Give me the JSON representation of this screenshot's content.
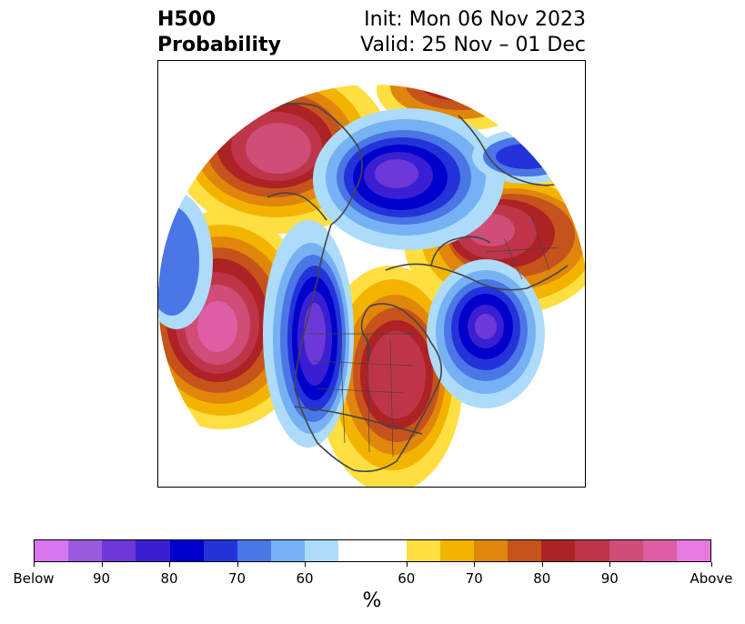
{
  "title": {
    "left_line1": "H500",
    "left_line2": "Probability",
    "right_line1": "Init: Mon 06 Nov 2023",
    "right_line2": "Valid: 25 Nov – 01 Dec"
  },
  "colors": {
    "below": [
      "#d977ee",
      "#9a5be0",
      "#6c38d9",
      "#3a1fd2",
      "#0000cc",
      "#2333d9",
      "#4a76e6",
      "#76b2f3",
      "#acdcfa"
    ],
    "neutral": "#ffffff",
    "above": [
      "#fddf41",
      "#f3b400",
      "#e0860b",
      "#c6531b",
      "#ad2224",
      "#be3549",
      "#cf4d77",
      "#de5ea6",
      "#e67ae1"
    ]
  },
  "colorbar": {
    "labels": [
      "Below",
      "90",
      "80",
      "70",
      "60",
      "60",
      "70",
      "80",
      "90",
      "Above"
    ],
    "unit": "%"
  }
}
